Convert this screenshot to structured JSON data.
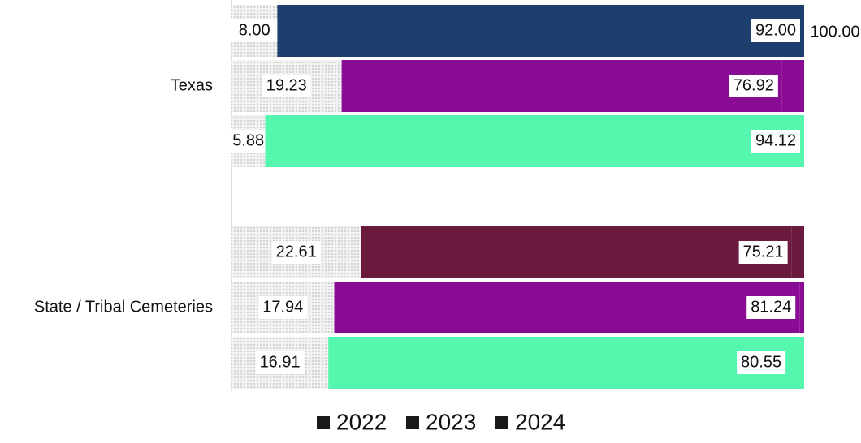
{
  "chart_data": {
    "type": "bar",
    "orientation": "horizontal",
    "stacked": true,
    "categories": [
      "Texas",
      "State / Tribal Cemeteries"
    ],
    "xlim": [
      0,
      100
    ],
    "legend": "bottom",
    "base_color": "#e6e6e6",
    "annotations": [
      "100.00"
    ],
    "series": [
      {
        "name": "2022",
        "color": "#1a1a1a",
        "colors": [
          "#1d3f6e",
          "#6a1b3d"
        ],
        "values": [
          [
            8,
            92,
            0
          ],
          [
            22.61,
            75.21,
            2.18
          ]
        ],
        "value_labels": [
          [
            "8.00",
            "92.00",
            null
          ],
          [
            "22.61",
            "75.21",
            null
          ]
        ]
      },
      {
        "name": "2023",
        "color": "#1a1a1a",
        "colors": [
          "#8a0c94",
          "#8a0c94"
        ],
        "values": [
          [
            19.23,
            76.92,
            3.85
          ],
          [
            17.94,
            81.24,
            0.82
          ]
        ],
        "value_labels": [
          [
            "19.23",
            "76.92",
            null
          ],
          [
            "17.94",
            "81.24",
            null
          ]
        ]
      },
      {
        "name": "2024",
        "color": "#1a1a1a",
        "colors": [
          "#55f7ae",
          "#55f7ae"
        ],
        "values": [
          [
            5.88,
            94.12,
            0
          ],
          [
            16.91,
            80.55,
            2.54
          ]
        ],
        "value_labels": [
          [
            "5.88",
            "94.12",
            null
          ],
          [
            "16.91",
            "80.55",
            null
          ]
        ]
      }
    ]
  }
}
